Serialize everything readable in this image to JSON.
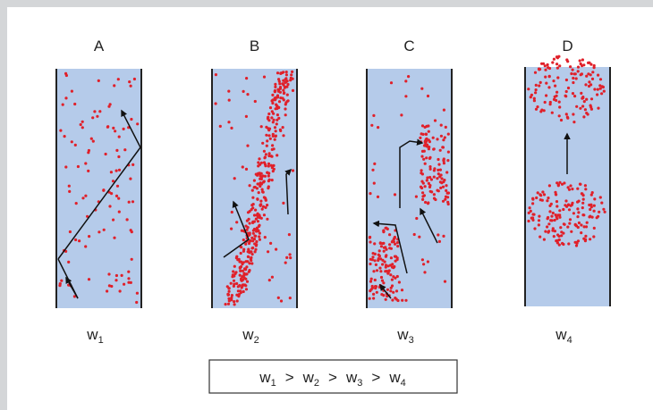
{
  "columns": [
    {
      "letter": "A",
      "label": {
        "base": "w",
        "sub": "1"
      }
    },
    {
      "letter": "B",
      "label": {
        "base": "w",
        "sub": "2"
      }
    },
    {
      "letter": "C",
      "label": {
        "base": "w",
        "sub": "3"
      }
    },
    {
      "letter": "D",
      "label": {
        "base": "w",
        "sub": "4"
      }
    }
  ],
  "formula": {
    "terms": [
      {
        "base": "w",
        "sub": "1"
      },
      {
        "base": "w",
        "sub": "2"
      },
      {
        "base": "w",
        "sub": "3"
      },
      {
        "base": "w",
        "sub": "4"
      }
    ],
    "operator": ">"
  }
}
